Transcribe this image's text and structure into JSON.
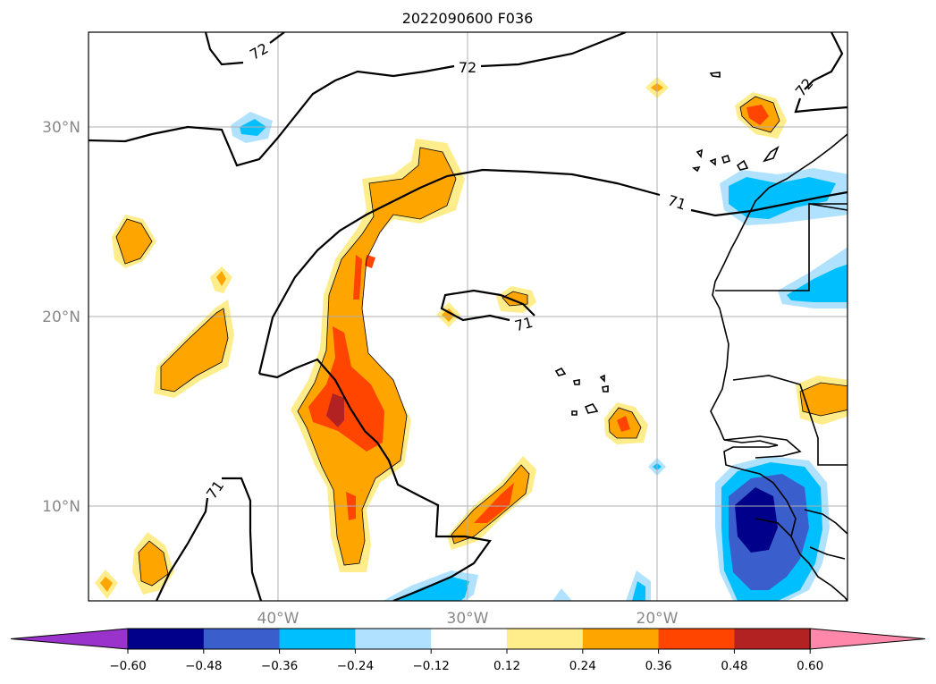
{
  "title": "2022090600 F036",
  "map": {
    "lat_ticks": [
      "30°N",
      "20°N",
      "10°N"
    ],
    "lon_ticks": [
      "40°W",
      "30°W",
      "20°W"
    ],
    "contour_labels": [
      "72",
      "72",
      "72",
      "71",
      "71",
      "71"
    ],
    "grid": true
  },
  "colorbar": {
    "labels": [
      "−0.60",
      "−0.48",
      "−0.36",
      "−0.24",
      "−0.12",
      "0.12",
      "0.24",
      "0.36",
      "0.48",
      "0.60"
    ],
    "colors": [
      "#9933cc",
      "#00008b",
      "#3a5fcd",
      "#00bfff",
      "#b0e2ff",
      "#ffffff",
      "#ffec8b",
      "#ffa500",
      "#ff4500",
      "#b22222",
      "#ff88aa"
    ],
    "extend": "both"
  }
}
